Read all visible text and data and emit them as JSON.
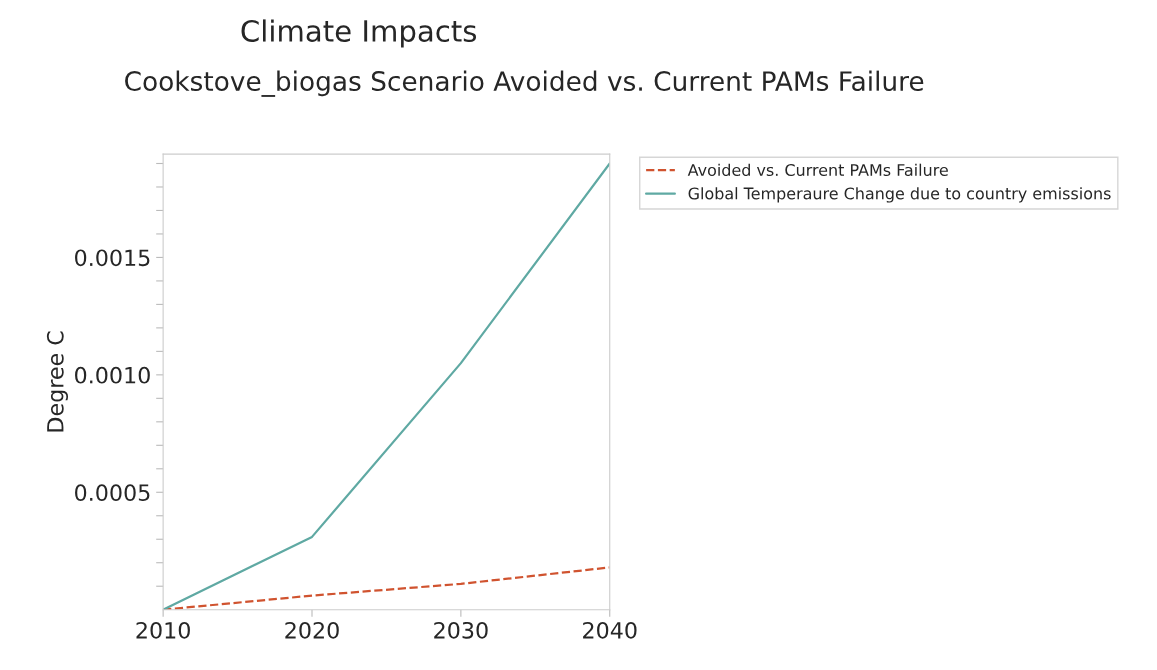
{
  "chart_data": {
    "type": "line",
    "title": "Climate Impacts",
    "subtitle": "Cookstove_biogas Scenario Avoided vs. Current PAMs Failure",
    "ylabel": "Degree C",
    "x": [
      2010,
      2020,
      2030,
      2040
    ],
    "series": [
      {
        "name": "Avoided vs. Current PAMs Failure",
        "color": "#d0532f",
        "line_style": "dashed",
        "values": [
          0,
          6e-05,
          0.00011,
          0.00018
        ]
      },
      {
        "name": "Global Temperaure Change due to country emissions",
        "color": "#5fa9a3",
        "line_style": "solid",
        "values": [
          0,
          0.00031,
          0.00105,
          0.0019
        ]
      }
    ],
    "xlim": [
      2010,
      2040
    ],
    "xticks": [
      2010,
      2020,
      2030,
      2040
    ],
    "ylim": [
      0,
      0.00194
    ],
    "yticks": [
      {
        "value": 0.0001,
        "label": null
      },
      {
        "value": 0.0002,
        "label": null
      },
      {
        "value": 0.0003,
        "label": null
      },
      {
        "value": 0.0004,
        "label": null
      },
      {
        "value": 0.0005,
        "label": "0.0005"
      },
      {
        "value": 0.0006,
        "label": null
      },
      {
        "value": 0.0007,
        "label": null
      },
      {
        "value": 0.0008,
        "label": null
      },
      {
        "value": 0.0009,
        "label": null
      },
      {
        "value": 0.001,
        "label": "0.0010"
      },
      {
        "value": 0.0011,
        "label": null
      },
      {
        "value": 0.0012,
        "label": null
      },
      {
        "value": 0.0013,
        "label": null
      },
      {
        "value": 0.0014,
        "label": null
      },
      {
        "value": 0.0015,
        "label": "0.0015"
      },
      {
        "value": 0.0016,
        "label": null
      },
      {
        "value": 0.0017,
        "label": null
      },
      {
        "value": 0.0018,
        "label": null
      },
      {
        "value": 0.0019,
        "label": null
      }
    ],
    "grid": false,
    "legend": "right",
    "marker": "none"
  }
}
